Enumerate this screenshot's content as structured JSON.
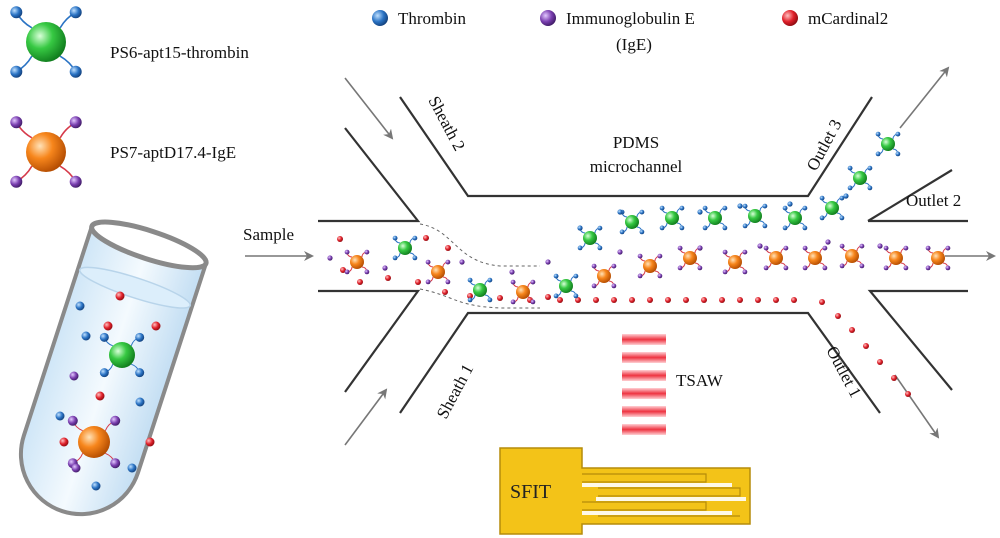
{
  "legend": {
    "thrombin": "Thrombin",
    "ige": "Immunoglobulin E",
    "ige_abbr": "(IgE)",
    "mcardinal": "mCardinal2"
  },
  "particles": {
    "ps6": "PS6-apt15-thrombin",
    "ps7": "PS7-aptD17.4-IgE"
  },
  "channel": {
    "title_line1": "PDMS",
    "title_line2": "microchannel",
    "sample": "Sample",
    "sheath1": "Sheath 1",
    "sheath2": "Sheath 2",
    "outlet1": "Outlet 1",
    "outlet2": "Outlet 2",
    "outlet3": "Outlet 3"
  },
  "device": {
    "tsaw": "TSAW",
    "sfit": "SFIT"
  },
  "colors": {
    "thrombin": "#2a73c4",
    "ige": "#7a3fb0",
    "mcardinal": "#e0202a",
    "green_bead": "#2fc03a",
    "orange_bead": "#f07a10",
    "sfit_gold": "#f3c318",
    "tsaw_red": "#ee3340"
  }
}
